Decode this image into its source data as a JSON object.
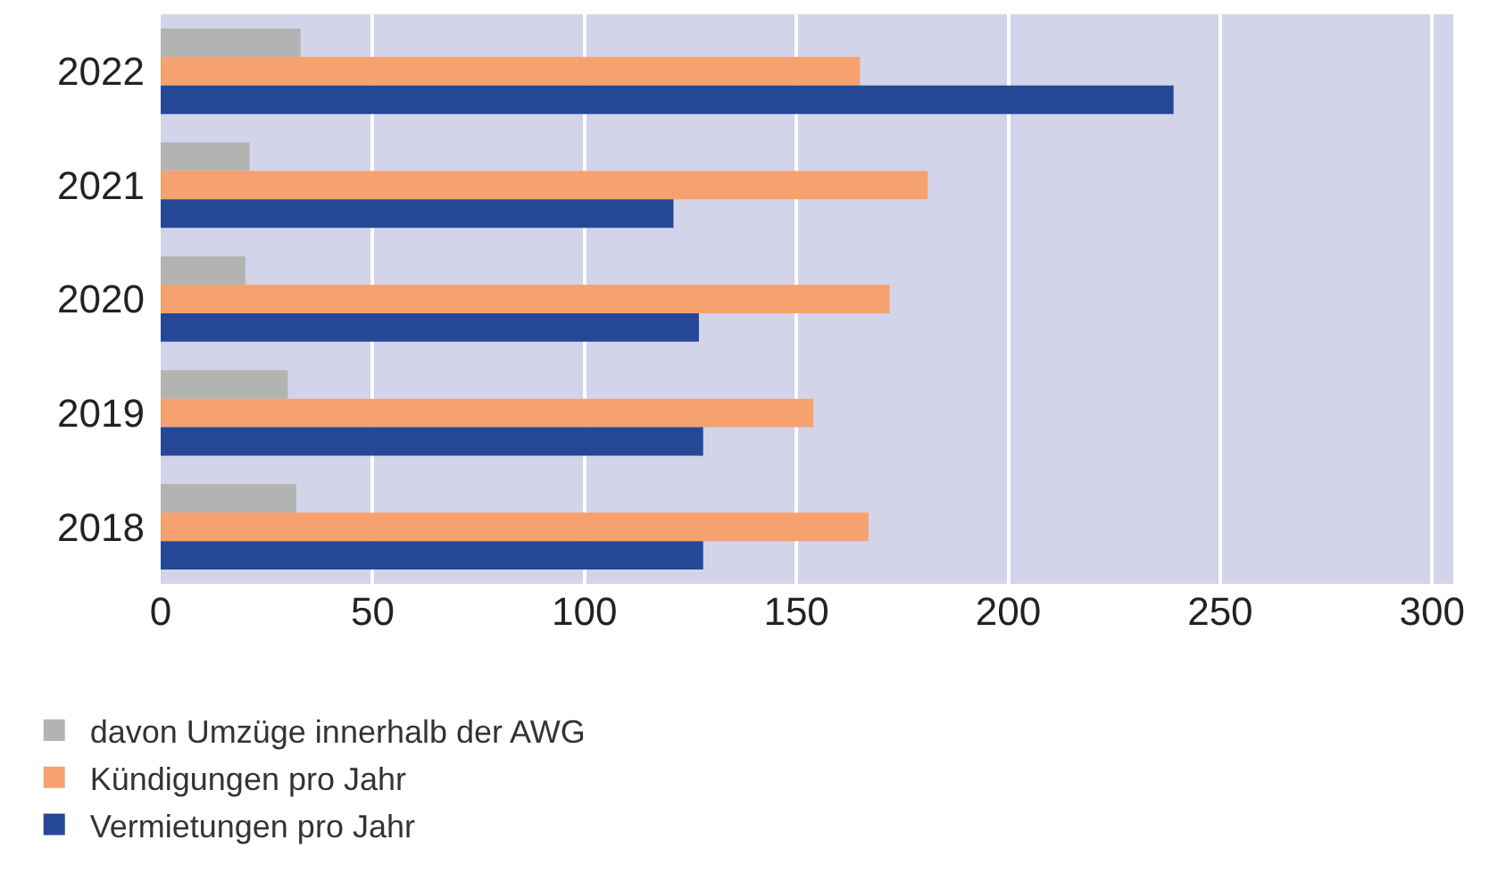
{
  "chart_data": {
    "type": "bar",
    "orientation": "horizontal",
    "categories": [
      "2022",
      "2021",
      "2020",
      "2019",
      "2018"
    ],
    "series": [
      {
        "name": "davon Umzüge innerhalb der AWG",
        "color": "#b3b4b2",
        "values": [
          33,
          21,
          20,
          30,
          32
        ]
      },
      {
        "name": "Kündigungen pro Jahr",
        "color": "#f5a26f",
        "values": [
          165,
          181,
          172,
          154,
          167
        ]
      },
      {
        "name": "Vermietungen pro Jahr",
        "color": "#244896",
        "values": [
          239,
          121,
          127,
          128,
          128
        ]
      }
    ],
    "xlim": [
      0,
      305
    ],
    "xticks": [
      0,
      50,
      100,
      150,
      200,
      250,
      300
    ],
    "grid": "x",
    "legend": "bottom left"
  }
}
